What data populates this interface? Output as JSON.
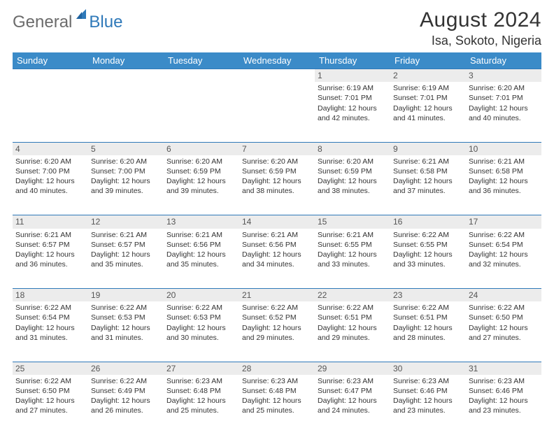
{
  "logo": {
    "general": "General",
    "blue": "Blue"
  },
  "header": {
    "title": "August 2024",
    "location": "Isa, Sokoto, Nigeria"
  },
  "colors": {
    "header_bg": "#3b8bc8",
    "border": "#2f79b9",
    "daynum_bg": "#ececec",
    "text": "#333333",
    "logo_gray": "#6b6b6b",
    "logo_blue": "#2f79b9",
    "page_bg": "#ffffff"
  },
  "weekdays": [
    "Sunday",
    "Monday",
    "Tuesday",
    "Wednesday",
    "Thursday",
    "Friday",
    "Saturday"
  ],
  "weeks": [
    {
      "nums": [
        "",
        "",
        "",
        "",
        "1",
        "2",
        "3"
      ],
      "cells": [
        "",
        "",
        "",
        "",
        "Sunrise: 6:19 AM\nSunset: 7:01 PM\nDaylight: 12 hours and 42 minutes.",
        "Sunrise: 6:19 AM\nSunset: 7:01 PM\nDaylight: 12 hours and 41 minutes.",
        "Sunrise: 6:20 AM\nSunset: 7:01 PM\nDaylight: 12 hours and 40 minutes."
      ]
    },
    {
      "nums": [
        "4",
        "5",
        "6",
        "7",
        "8",
        "9",
        "10"
      ],
      "cells": [
        "Sunrise: 6:20 AM\nSunset: 7:00 PM\nDaylight: 12 hours and 40 minutes.",
        "Sunrise: 6:20 AM\nSunset: 7:00 PM\nDaylight: 12 hours and 39 minutes.",
        "Sunrise: 6:20 AM\nSunset: 6:59 PM\nDaylight: 12 hours and 39 minutes.",
        "Sunrise: 6:20 AM\nSunset: 6:59 PM\nDaylight: 12 hours and 38 minutes.",
        "Sunrise: 6:20 AM\nSunset: 6:59 PM\nDaylight: 12 hours and 38 minutes.",
        "Sunrise: 6:21 AM\nSunset: 6:58 PM\nDaylight: 12 hours and 37 minutes.",
        "Sunrise: 6:21 AM\nSunset: 6:58 PM\nDaylight: 12 hours and 36 minutes."
      ]
    },
    {
      "nums": [
        "11",
        "12",
        "13",
        "14",
        "15",
        "16",
        "17"
      ],
      "cells": [
        "Sunrise: 6:21 AM\nSunset: 6:57 PM\nDaylight: 12 hours and 36 minutes.",
        "Sunrise: 6:21 AM\nSunset: 6:57 PM\nDaylight: 12 hours and 35 minutes.",
        "Sunrise: 6:21 AM\nSunset: 6:56 PM\nDaylight: 12 hours and 35 minutes.",
        "Sunrise: 6:21 AM\nSunset: 6:56 PM\nDaylight: 12 hours and 34 minutes.",
        "Sunrise: 6:21 AM\nSunset: 6:55 PM\nDaylight: 12 hours and 33 minutes.",
        "Sunrise: 6:22 AM\nSunset: 6:55 PM\nDaylight: 12 hours and 33 minutes.",
        "Sunrise: 6:22 AM\nSunset: 6:54 PM\nDaylight: 12 hours and 32 minutes."
      ]
    },
    {
      "nums": [
        "18",
        "19",
        "20",
        "21",
        "22",
        "23",
        "24"
      ],
      "cells": [
        "Sunrise: 6:22 AM\nSunset: 6:54 PM\nDaylight: 12 hours and 31 minutes.",
        "Sunrise: 6:22 AM\nSunset: 6:53 PM\nDaylight: 12 hours and 31 minutes.",
        "Sunrise: 6:22 AM\nSunset: 6:53 PM\nDaylight: 12 hours and 30 minutes.",
        "Sunrise: 6:22 AM\nSunset: 6:52 PM\nDaylight: 12 hours and 29 minutes.",
        "Sunrise: 6:22 AM\nSunset: 6:51 PM\nDaylight: 12 hours and 29 minutes.",
        "Sunrise: 6:22 AM\nSunset: 6:51 PM\nDaylight: 12 hours and 28 minutes.",
        "Sunrise: 6:22 AM\nSunset: 6:50 PM\nDaylight: 12 hours and 27 minutes."
      ]
    },
    {
      "nums": [
        "25",
        "26",
        "27",
        "28",
        "29",
        "30",
        "31"
      ],
      "cells": [
        "Sunrise: 6:22 AM\nSunset: 6:50 PM\nDaylight: 12 hours and 27 minutes.",
        "Sunrise: 6:22 AM\nSunset: 6:49 PM\nDaylight: 12 hours and 26 minutes.",
        "Sunrise: 6:23 AM\nSunset: 6:48 PM\nDaylight: 12 hours and 25 minutes.",
        "Sunrise: 6:23 AM\nSunset: 6:48 PM\nDaylight: 12 hours and 25 minutes.",
        "Sunrise: 6:23 AM\nSunset: 6:47 PM\nDaylight: 12 hours and 24 minutes.",
        "Sunrise: 6:23 AM\nSunset: 6:46 PM\nDaylight: 12 hours and 23 minutes.",
        "Sunrise: 6:23 AM\nSunset: 6:46 PM\nDaylight: 12 hours and 23 minutes."
      ]
    }
  ]
}
